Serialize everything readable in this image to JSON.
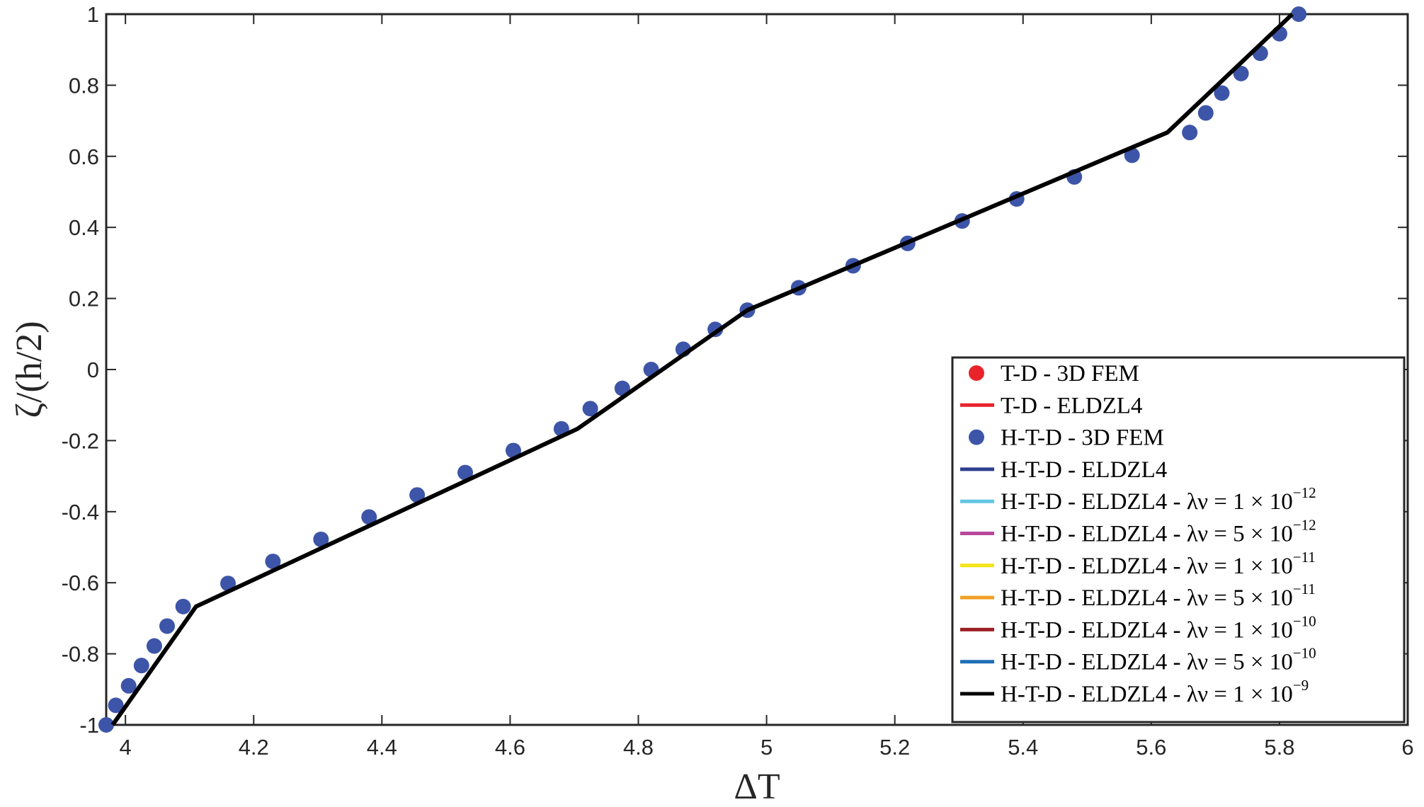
{
  "chart_data": {
    "type": "line",
    "title": "",
    "xlabel": "ΔT",
    "ylabel": "ζ/(h/2)",
    "xlim": [
      3.97,
      6
    ],
    "ylim": [
      -1,
      1
    ],
    "x_ticks": [
      4,
      4.2,
      4.4,
      4.6,
      4.8,
      5,
      5.2,
      5.4,
      5.6,
      5.8,
      6
    ],
    "x_tick_labels": [
      "4",
      "4.2",
      "4.4",
      "4.6",
      "4.8",
      "5",
      "5.2",
      "5.4",
      "5.6",
      "5.8",
      "6"
    ],
    "y_ticks": [
      -1,
      -0.8,
      -0.6,
      -0.4,
      -0.2,
      0,
      0.2,
      0.4,
      0.6,
      0.8,
      1
    ],
    "y_tick_labels": [
      "-1",
      "-0.8",
      "-0.6",
      "-0.4",
      "-0.2",
      "0",
      "0.2",
      "0.4",
      "0.6",
      "0.8",
      "1"
    ],
    "grid": false,
    "legend_position": "bottom-right",
    "series": [
      {
        "name": "T-D - 3D FEM",
        "kind": "marker",
        "color": "#e8232a",
        "x": [],
        "y": []
      },
      {
        "name": "T-D - ELDZL4",
        "kind": "line",
        "color": "#e8232a",
        "x": [],
        "y": []
      },
      {
        "name": "H-T-D - 3D FEM",
        "kind": "marker",
        "color": "#3d55a8",
        "x": [
          3.97,
          3.985,
          4.005,
          4.025,
          4.045,
          4.065,
          4.09,
          4.16,
          4.23,
          4.305,
          4.38,
          4.455,
          4.53,
          4.605,
          4.68,
          4.725,
          4.775,
          4.82,
          4.87,
          4.92,
          4.97,
          5.05,
          5.135,
          5.22,
          5.305,
          5.39,
          5.48,
          5.57,
          5.66,
          5.685,
          5.71,
          5.74,
          5.77,
          5.8,
          5.83
        ],
        "y": [
          -1,
          -0.945,
          -0.89,
          -0.833,
          -0.778,
          -0.722,
          -0.667,
          -0.602,
          -0.54,
          -0.478,
          -0.415,
          -0.353,
          -0.29,
          -0.228,
          -0.167,
          -0.11,
          -0.053,
          0,
          0.057,
          0.113,
          0.167,
          0.23,
          0.292,
          0.355,
          0.418,
          0.48,
          0.542,
          0.603,
          0.667,
          0.722,
          0.778,
          0.833,
          0.89,
          0.945,
          1
        ]
      },
      {
        "name": "H-T-D - ELDZL4",
        "kind": "line",
        "color": "#2e3f8f",
        "x": [],
        "y": []
      },
      {
        "name": "H-T-D - ELDZL4 - λν = 1 × 10",
        "exponent": "−12",
        "kind": "line",
        "color": "#62c6e3",
        "x": [],
        "y": []
      },
      {
        "name": "H-T-D - ELDZL4 - λν = 5 × 10",
        "exponent": "−12",
        "kind": "line",
        "color": "#b8479d",
        "x": [],
        "y": []
      },
      {
        "name": "H-T-D - ELDZL4 - λν = 1 × 10",
        "exponent": "−11",
        "kind": "line",
        "color": "#f5e316",
        "x": [],
        "y": []
      },
      {
        "name": "H-T-D - ELDZL4 - λν = 5 × 10",
        "exponent": "−11",
        "kind": "line",
        "color": "#f0a125",
        "x": [],
        "y": []
      },
      {
        "name": "H-T-D - ELDZL4 - λν = 1 × 10",
        "exponent": "−10",
        "kind": "line",
        "color": "#9c1f24",
        "x": [],
        "y": []
      },
      {
        "name": "H-T-D - ELDZL4 - λν = 5 × 10",
        "exponent": "−10",
        "kind": "line",
        "color": "#1f6fb5",
        "x": [],
        "y": []
      },
      {
        "name": "H-T-D - ELDZL4 - λν = 1 × 10",
        "exponent": "−9",
        "kind": "line",
        "color": "#000000",
        "x": [
          3.98,
          4.11,
          4.705,
          4.97,
          5.625,
          5.82
        ],
        "y": [
          -1,
          -0.667,
          -0.167,
          0.167,
          0.667,
          1
        ]
      }
    ]
  }
}
